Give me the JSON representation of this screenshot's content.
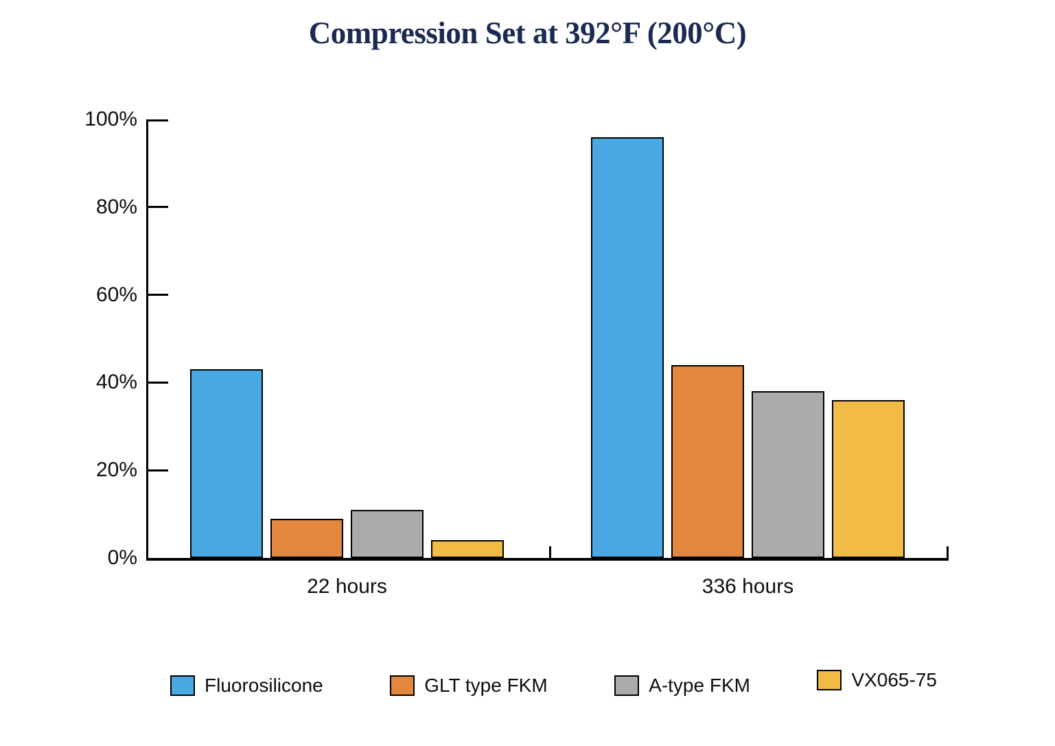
{
  "title": "Compression Set at 392°F (200°C)",
  "chart_data": {
    "type": "bar",
    "title": "Compression Set at 392°F (200°C)",
    "categories": [
      "22 hours",
      "336 hours"
    ],
    "series": [
      {
        "name": "Fluorosilicone",
        "color": "#4AA8E2",
        "values": [
          43,
          96
        ]
      },
      {
        "name": "GLT type FKM",
        "color": "#E2873F",
        "values": [
          9,
          44
        ]
      },
      {
        "name": "A-type FKM",
        "color": "#ABABAB",
        "values": [
          11,
          38
        ]
      },
      {
        "name": "VX065-75",
        "color": "#F2BB45",
        "values": [
          4,
          36
        ]
      }
    ],
    "xlabel": "",
    "ylabel": "",
    "ylim": [
      0,
      100
    ],
    "y_ticks": [
      "0%",
      "20%",
      "40%",
      "60%",
      "80%",
      "100%"
    ],
    "grid": false,
    "legend_position": "bottom"
  },
  "colors": {
    "title_text": "#1b2a55",
    "axis": "#000000"
  }
}
